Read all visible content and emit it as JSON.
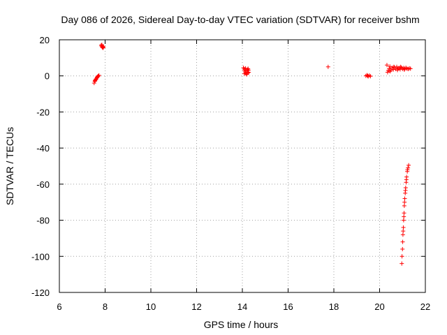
{
  "chart_data": {
    "type": "scatter",
    "title": "Day 086 of 2026, Sidereal Day-to-day VTEC variation (SDTVAR) for receiver bshm",
    "xlabel": "GPS time / hours",
    "ylabel": "SDTVAR / TECUs",
    "xlim": [
      6,
      22
    ],
    "ylim": [
      -120,
      20
    ],
    "xticks": [
      "6",
      "8",
      "10",
      "12",
      "14",
      "16",
      "18",
      "20",
      "22"
    ],
    "yticks": [
      "20",
      "0",
      "-20",
      "-40",
      "-60",
      "-80",
      "-100",
      "-120"
    ],
    "grid": true,
    "marker": "+",
    "color": "#ff0000",
    "series": [
      {
        "name": "SDTVAR",
        "points": [
          [
            7.52,
            -4.0
          ],
          [
            7.55,
            -3.0
          ],
          [
            7.58,
            -2.2
          ],
          [
            7.61,
            -1.6
          ],
          [
            7.64,
            -1.0
          ],
          [
            7.67,
            -0.5
          ],
          [
            7.7,
            -0.1
          ],
          [
            7.73,
            0.3
          ],
          [
            7.56,
            -2.6
          ],
          [
            7.6,
            -1.9
          ],
          [
            7.65,
            -0.8
          ],
          [
            7.69,
            -0.2
          ],
          [
            7.83,
            17.0
          ],
          [
            7.85,
            16.5
          ],
          [
            7.87,
            16.0
          ],
          [
            7.89,
            15.8
          ],
          [
            7.91,
            15.5
          ],
          [
            7.86,
            17.2
          ],
          [
            7.9,
            16.4
          ],
          [
            7.93,
            16.0
          ],
          [
            14.05,
            4.5
          ],
          [
            14.08,
            3.8
          ],
          [
            14.1,
            3.0
          ],
          [
            14.12,
            2.2
          ],
          [
            14.15,
            1.5
          ],
          [
            14.18,
            1.0
          ],
          [
            14.2,
            2.8
          ],
          [
            14.22,
            3.5
          ],
          [
            14.25,
            4.0
          ],
          [
            14.28,
            2.0
          ],
          [
            14.09,
            1.2
          ],
          [
            14.14,
            4.2
          ],
          [
            14.19,
            0.8
          ],
          [
            14.24,
            1.6
          ],
          [
            14.27,
            3.2
          ],
          [
            17.75,
            5.0
          ],
          [
            19.4,
            0.0
          ],
          [
            19.45,
            0.4
          ],
          [
            19.5,
            -0.3
          ],
          [
            19.55,
            0.2
          ],
          [
            19.6,
            -0.2
          ],
          [
            19.48,
            0.0
          ],
          [
            20.32,
            6.0
          ],
          [
            20.35,
            2.0
          ],
          [
            20.38,
            3.0
          ],
          [
            20.42,
            4.0
          ],
          [
            20.46,
            2.5
          ],
          [
            20.5,
            3.2
          ],
          [
            20.55,
            4.5
          ],
          [
            20.6,
            3.5
          ],
          [
            20.65,
            4.8
          ],
          [
            20.7,
            3.8
          ],
          [
            20.75,
            5.0
          ],
          [
            20.8,
            4.0
          ],
          [
            20.85,
            4.5
          ],
          [
            20.9,
            3.6
          ],
          [
            20.95,
            4.6
          ],
          [
            21.0,
            3.8
          ],
          [
            21.05,
            4.4
          ],
          [
            21.1,
            4.0
          ],
          [
            21.15,
            4.5
          ],
          [
            21.2,
            4.0
          ],
          [
            21.25,
            3.8
          ],
          [
            21.3,
            4.2
          ],
          [
            21.35,
            4.0
          ],
          [
            20.45,
            5.2
          ],
          [
            20.62,
            5.0
          ],
          [
            20.78,
            3.2
          ],
          [
            20.92,
            5.0
          ],
          [
            21.08,
            3.4
          ],
          [
            20.97,
            -104.0
          ],
          [
            20.98,
            -100.0
          ],
          [
            21.0,
            -96.0
          ],
          [
            21.01,
            -92.0
          ],
          [
            21.02,
            -88.0
          ],
          [
            21.04,
            -84.0
          ],
          [
            21.05,
            -80.0
          ],
          [
            21.07,
            -76.0
          ],
          [
            21.08,
            -72.0
          ],
          [
            21.1,
            -68.0
          ],
          [
            21.12,
            -65.0
          ],
          [
            21.14,
            -62.0
          ],
          [
            21.16,
            -59.0
          ],
          [
            21.18,
            -56.0
          ],
          [
            21.21,
            -53.0
          ],
          [
            21.24,
            -51.0
          ],
          [
            21.27,
            -49.5
          ],
          [
            21.03,
            -86.0
          ],
          [
            21.06,
            -78.0
          ],
          [
            21.09,
            -70.0
          ],
          [
            21.13,
            -63.5
          ],
          [
            21.17,
            -57.5
          ],
          [
            21.22,
            -52.0
          ]
        ]
      }
    ]
  }
}
